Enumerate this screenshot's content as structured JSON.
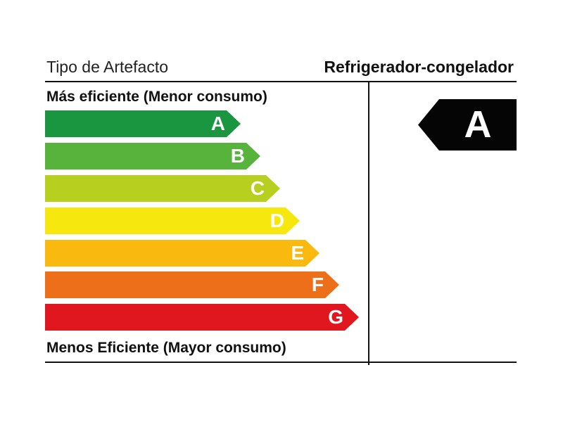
{
  "header": {
    "type_label": "Tipo de Artefacto",
    "product": "Refrigerador-congelador"
  },
  "scale": {
    "most_efficient": "Más eficiente (Menor consumo)",
    "least_efficient": "Menos Eficiente (Mayor consumo)",
    "classes": [
      {
        "letter": "A",
        "color": "#1a9641"
      },
      {
        "letter": "B",
        "color": "#57b33b"
      },
      {
        "letter": "C",
        "color": "#b7cf1f"
      },
      {
        "letter": "D",
        "color": "#f6e80f"
      },
      {
        "letter": "E",
        "color": "#f9b90f"
      },
      {
        "letter": "F",
        "color": "#ee6f1a"
      },
      {
        "letter": "G",
        "color": "#e0171f"
      }
    ]
  },
  "rating": {
    "letter": "A",
    "color": "#050505"
  }
}
